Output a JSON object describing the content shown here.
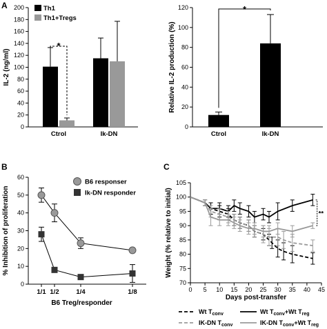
{
  "chart_data": [
    {
      "id": "A-left",
      "panel": "A",
      "type": "bar",
      "categories": [
        "Ctrol",
        "Ik-DN"
      ],
      "series": [
        {
          "name": "Th1",
          "color": "#000000",
          "values": [
            101,
            115
          ],
          "err": [
            32,
            34
          ]
        },
        {
          "name": "Th1+Tregs",
          "color": "#999999",
          "values": [
            11,
            110
          ],
          "err": [
            4,
            67
          ]
        }
      ],
      "ylabel": "IL-2 (ng/ml)",
      "ylim": [
        0,
        200
      ],
      "yticks": [
        0,
        20,
        40,
        60,
        80,
        100,
        120,
        140,
        160,
        180,
        200
      ],
      "legend_position": "top-left",
      "annotation": "*"
    },
    {
      "id": "A-right",
      "type": "bar",
      "categories": [
        "Ctrol",
        "Ik-DN"
      ],
      "series": [
        {
          "color": "#000000",
          "values": [
            12,
            84
          ],
          "err": [
            3,
            29
          ]
        }
      ],
      "ylabel": "Relative IL-2 production (%)",
      "ylim": [
        0,
        120
      ],
      "yticks": [
        0,
        20,
        40,
        60,
        80,
        100,
        120
      ],
      "annotation": "*"
    },
    {
      "id": "B",
      "panel": "B",
      "type": "line",
      "categories": [
        "1/1",
        "1/2",
        "1/4",
        "1/8"
      ],
      "x": [
        1,
        2,
        4,
        8
      ],
      "series": [
        {
          "name": "B6 responser",
          "color": "#999999",
          "marker": "circle",
          "values": [
            50,
            40,
            23,
            19
          ],
          "err": [
            4,
            5,
            3,
            0
          ]
        },
        {
          "name": "Ik-DN responder",
          "color": "#333333",
          "marker": "square",
          "values": [
            28,
            8,
            4,
            6
          ],
          "err": [
            4,
            0,
            0,
            5
          ]
        }
      ],
      "xlabel": "B6 Treg/responder",
      "ylabel": "% Inhibition of proliferation",
      "ylim": [
        0,
        60
      ],
      "yticks": [
        0,
        10,
        20,
        30,
        40,
        50,
        60
      ],
      "legend_position": "top-right"
    },
    {
      "id": "C",
      "panel": "C",
      "type": "line",
      "x_ticks": [
        0,
        5,
        10,
        15,
        20,
        25,
        30,
        35,
        40,
        45
      ],
      "xlim": [
        0,
        45
      ],
      "xlabel": "Days post-transfer",
      "ylabel": "Weight (% relative to initial)",
      "ylim": [
        70,
        105
      ],
      "yticks": [
        70,
        75,
        80,
        85,
        90,
        95,
        100,
        105
      ],
      "legend_position": "bottom",
      "annotation": "**",
      "series": [
        {
          "name_main": "Wt T",
          "name_sub": "conv",
          "color": "#000000",
          "dash": true,
          "x": [
            0,
            5,
            7,
            10,
            13,
            15,
            17,
            20,
            22,
            25,
            27,
            28,
            30,
            32,
            35,
            42
          ],
          "values": [
            100,
            98,
            96,
            95,
            94,
            92,
            91,
            90,
            88,
            87,
            85,
            84,
            82,
            81,
            80,
            78.5
          ],
          "err": [
            0,
            1,
            2,
            2,
            2,
            2,
            2,
            2,
            2,
            2,
            2,
            2,
            3,
            3,
            3,
            2
          ]
        },
        {
          "name_main": "Wt T",
          "name_sub": "conv",
          "name_main2": "+Wt T",
          "name_sub2": "reg",
          "color": "#000000",
          "dash": false,
          "x": [
            0,
            5,
            7,
            10,
            13,
            15,
            17,
            20,
            22,
            25,
            27,
            30,
            35,
            42
          ],
          "values": [
            100,
            98,
            96,
            96,
            95,
            97,
            96,
            95,
            93,
            94,
            93,
            95,
            97,
            99
          ],
          "err": [
            0,
            1,
            2,
            2,
            2,
            2,
            2,
            2,
            2,
            2,
            2,
            3,
            2,
            2
          ]
        },
        {
          "name_main": "IK-DN T",
          "name_sub": "conv",
          "color": "#999999",
          "dash": true,
          "x": [
            0,
            5,
            7,
            10,
            13,
            15,
            17,
            20,
            22,
            25,
            27,
            30,
            32,
            35,
            42
          ],
          "values": [
            100,
            98,
            95,
            94,
            93,
            92,
            91,
            90,
            88,
            87,
            86,
            86,
            85,
            84,
            83
          ],
          "err": [
            0,
            1,
            2,
            2,
            2,
            2,
            2,
            2,
            2,
            3,
            3,
            3,
            3,
            3,
            2
          ]
        },
        {
          "name_main": "IK-DN T",
          "name_sub": "conv",
          "name_main2": "+Wt T",
          "name_sub2": "reg",
          "color": "#999999",
          "dash": false,
          "x": [
            0,
            5,
            7,
            10,
            13,
            15,
            17,
            20,
            22,
            25,
            27,
            30,
            35,
            42
          ],
          "values": [
            100,
            98,
            93,
            92,
            92,
            91,
            90,
            89,
            89,
            88,
            88,
            89,
            88,
            90
          ],
          "err": [
            0,
            1,
            3,
            2,
            2,
            2,
            2,
            2,
            2,
            2,
            2,
            2,
            2,
            1
          ]
        }
      ]
    }
  ]
}
